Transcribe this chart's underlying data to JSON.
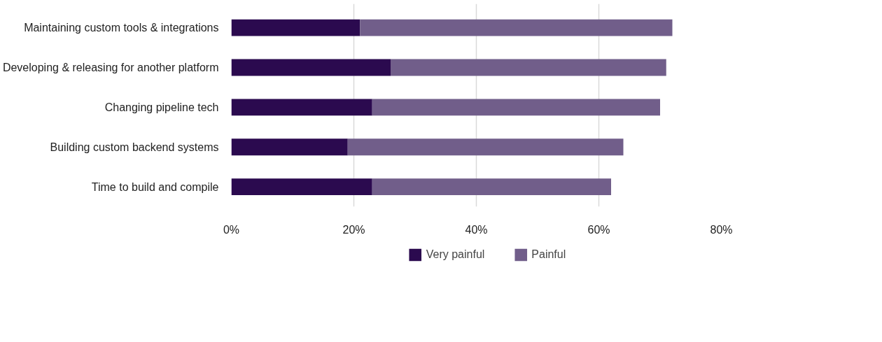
{
  "chart_data": {
    "type": "bar",
    "orientation": "horizontal",
    "stacked": true,
    "categories": [
      "Maintaining custom tools & integrations",
      "Developing & releasing for another platform",
      "Changing pipeline tech",
      "Building custom backend systems",
      "Time to build and compile"
    ],
    "series": [
      {
        "name": "Very painful",
        "color": "#2b0a4f",
        "values": [
          21,
          26,
          23,
          19,
          23
        ]
      },
      {
        "name": "Painful",
        "color": "#715e8a",
        "values": [
          51,
          45,
          47,
          45,
          39
        ]
      }
    ],
    "xlim": [
      0,
      80
    ],
    "xticks": [
      {
        "value": 0,
        "label": "0%"
      },
      {
        "value": 20,
        "label": "20%"
      },
      {
        "value": 40,
        "label": "40%"
      },
      {
        "value": 60,
        "label": "60%"
      },
      {
        "value": 80,
        "label": "80%"
      }
    ],
    "grid": "x",
    "legend": "bottom"
  }
}
